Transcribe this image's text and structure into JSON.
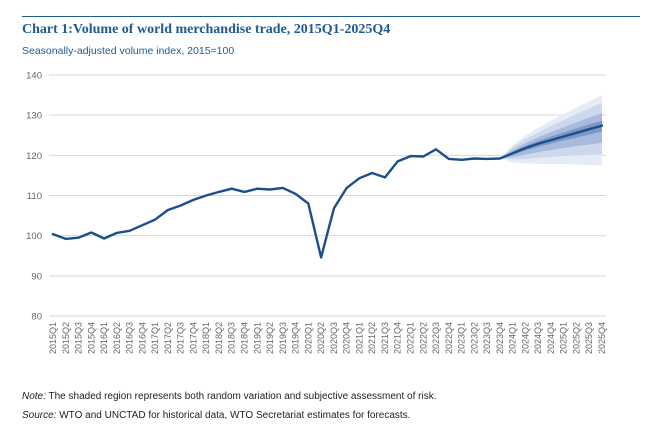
{
  "header": {
    "title": "Chart 1:Volume of world merchandise trade, 2015Q1-2025Q4",
    "subtitle": "Seasonally-adjusted volume index, 2015=100"
  },
  "notes": {
    "note_label": "Note:",
    "note_text": " The shaded region represents both random variation and subjective assessment of risk.",
    "source_label": "Source:",
    "source_text": " WTO and UNCTAD for historical data, WTO Secretariat estimates for forecasts."
  },
  "colors": {
    "line": "#1a4f8b",
    "fan_outer": "#e6ecf6",
    "fan_mid2": "#cdd8ec",
    "fan_mid1": "#a9bbdc",
    "fan_inner": "#7f97c6",
    "grid": "#d9d9d9",
    "axis_text": "#666666"
  },
  "chart_data": {
    "type": "line",
    "grid": true,
    "ylim": [
      80,
      140
    ],
    "yticks": [
      80,
      90,
      100,
      110,
      120,
      130,
      140
    ],
    "categories": [
      "2015Q1",
      "2015Q2",
      "2015Q3",
      "2015Q4",
      "2016Q1",
      "2016Q2",
      "2016Q3",
      "2016Q4",
      "2017Q1",
      "2017Q2",
      "2017Q3",
      "2017Q4",
      "2018Q1",
      "2018Q2",
      "2018Q3",
      "2018Q4",
      "2019Q1",
      "2019Q2",
      "2019Q3",
      "2019Q4",
      "2020Q1",
      "2020Q2",
      "2020Q3",
      "2020Q4",
      "2021Q1",
      "2021Q2",
      "2021Q3",
      "2021Q4",
      "2022Q1",
      "2022Q2",
      "2022Q3",
      "2022Q4",
      "2023Q1",
      "2023Q2",
      "2023Q3",
      "2023Q4",
      "2024Q1",
      "2024Q2",
      "2024Q3",
      "2024Q4",
      "2025Q1",
      "2025Q2",
      "2025Q3",
      "2025Q4"
    ],
    "series": [
      {
        "values": [
          100.4,
          99.2,
          99.5,
          100.8,
          99.3,
          100.7,
          101.2,
          102.6,
          104.0,
          106.4,
          107.5,
          108.9,
          110.0,
          110.9,
          111.7,
          110.9,
          111.7,
          111.5,
          111.9,
          110.4,
          108.0,
          94.6,
          106.8,
          111.9,
          114.3,
          115.6,
          114.5,
          118.5,
          119.8,
          119.7,
          121.5,
          119.1,
          118.9,
          119.2,
          119.1,
          119.2,
          120.5,
          121.8,
          122.9,
          123.8,
          124.7,
          125.6,
          126.5,
          127.4
        ]
      }
    ],
    "forecast_start_index": 35,
    "fan_bands": [
      {
        "lower": [
          119.2,
          118.2,
          118.0,
          117.9,
          117.8,
          117.8,
          117.7,
          117.6,
          117.5
        ],
        "upper": [
          119.2,
          122.5,
          124.9,
          126.9,
          128.6,
          130.3,
          131.9,
          133.5,
          135.0
        ]
      },
      {
        "lower": [
          119.2,
          119.0,
          119.1,
          119.4,
          119.6,
          119.8,
          120.0,
          120.1,
          120.2
        ],
        "upper": [
          119.2,
          122.0,
          124.0,
          125.7,
          127.3,
          128.8,
          130.3,
          131.7,
          133.1
        ]
      },
      {
        "lower": [
          119.2,
          119.6,
          120.2,
          120.8,
          121.3,
          121.8,
          122.3,
          122.7,
          123.1
        ],
        "upper": [
          119.2,
          121.4,
          123.0,
          124.5,
          125.8,
          127.0,
          128.2,
          129.4,
          130.5
        ]
      },
      {
        "lower": [
          119.2,
          120.1,
          121.2,
          122.1,
          122.9,
          123.7,
          124.4,
          125.2,
          125.9
        ],
        "upper": [
          119.2,
          120.9,
          122.4,
          123.6,
          124.7,
          125.7,
          126.7,
          127.7,
          128.6
        ]
      }
    ]
  }
}
